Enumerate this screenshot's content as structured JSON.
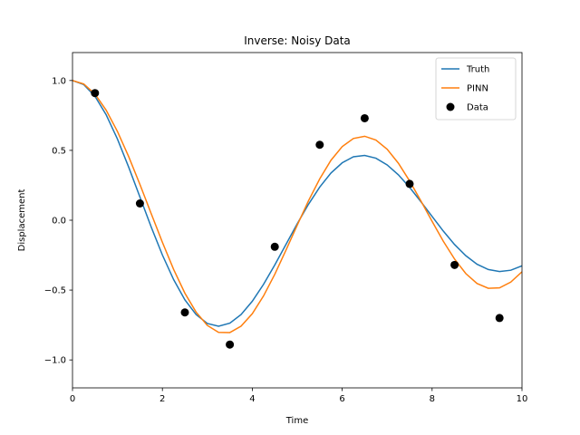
{
  "chart_data": {
    "type": "line",
    "title": "Inverse: Noisy Data",
    "xlabel": "Time",
    "ylabel": "Displacement",
    "xlim": [
      0,
      10
    ],
    "ylim": [
      -1.2,
      1.2
    ],
    "x_ticks": [
      0,
      2,
      4,
      6,
      8,
      10
    ],
    "x_tick_labels": [
      "0",
      "2",
      "4",
      "6",
      "8",
      "10"
    ],
    "y_ticks": [
      -1.0,
      -0.5,
      0.0,
      0.5,
      1.0
    ],
    "y_tick_labels": [
      "−1.0",
      "−0.5",
      "0.0",
      "0.5",
      "1.0"
    ],
    "grid": false,
    "legend_position": "top-right",
    "series": [
      {
        "name": "Truth",
        "kind": "line",
        "color": "#1f77b4",
        "x": [
          0,
          0.25,
          0.5,
          0.75,
          1.0,
          1.25,
          1.5,
          1.75,
          2.0,
          2.25,
          2.5,
          2.75,
          3.0,
          3.25,
          3.5,
          3.75,
          4.0,
          4.25,
          4.5,
          4.75,
          5.0,
          5.25,
          5.5,
          5.75,
          6.0,
          6.25,
          6.5,
          6.75,
          7.0,
          7.25,
          7.5,
          7.75,
          8.0,
          8.25,
          8.5,
          8.75,
          9.0,
          9.25,
          9.5,
          9.75,
          10.0
        ],
        "y": [
          1.0,
          0.971,
          0.887,
          0.754,
          0.581,
          0.38,
          0.166,
          -0.048,
          -0.249,
          -0.425,
          -0.57,
          -0.675,
          -0.739,
          -0.759,
          -0.737,
          -0.675,
          -0.58,
          -0.459,
          -0.32,
          -0.173,
          -0.025,
          0.114,
          0.237,
          0.338,
          0.411,
          0.454,
          0.464,
          0.444,
          0.396,
          0.325,
          0.235,
          0.133,
          0.027,
          -0.078,
          -0.174,
          -0.254,
          -0.315,
          -0.353,
          -0.367,
          -0.358,
          -0.326
        ]
      },
      {
        "name": "PINN",
        "kind": "line",
        "color": "#ff7f0e",
        "x": [
          0,
          0.25,
          0.5,
          0.75,
          1.0,
          1.25,
          1.5,
          1.75,
          2.0,
          2.25,
          2.5,
          2.75,
          3.0,
          3.25,
          3.5,
          3.75,
          4.0,
          4.25,
          4.5,
          4.75,
          5.0,
          5.25,
          5.5,
          5.75,
          6.0,
          6.25,
          6.5,
          6.75,
          7.0,
          7.25,
          7.5,
          7.75,
          8.0,
          8.25,
          8.5,
          8.75,
          9.0,
          9.25,
          9.5,
          9.75,
          10.0
        ],
        "y": [
          1.0,
          0.975,
          0.903,
          0.787,
          0.635,
          0.455,
          0.256,
          0.048,
          -0.158,
          -0.352,
          -0.522,
          -0.658,
          -0.753,
          -0.803,
          -0.804,
          -0.758,
          -0.669,
          -0.542,
          -0.387,
          -0.214,
          -0.035,
          0.139,
          0.296,
          0.429,
          0.527,
          0.585,
          0.601,
          0.574,
          0.508,
          0.408,
          0.281,
          0.139,
          -0.008,
          -0.151,
          -0.278,
          -0.382,
          -0.453,
          -0.487,
          -0.484,
          -0.443,
          -0.369
        ]
      },
      {
        "name": "Data",
        "kind": "scatter",
        "color": "#000000",
        "x": [
          0.5,
          1.5,
          2.5,
          3.5,
          4.5,
          5.5,
          6.5,
          7.5,
          8.5,
          9.5
        ],
        "y": [
          0.91,
          0.12,
          -0.66,
          -0.89,
          -0.19,
          0.54,
          0.73,
          0.26,
          -0.32,
          -0.7
        ]
      }
    ]
  }
}
